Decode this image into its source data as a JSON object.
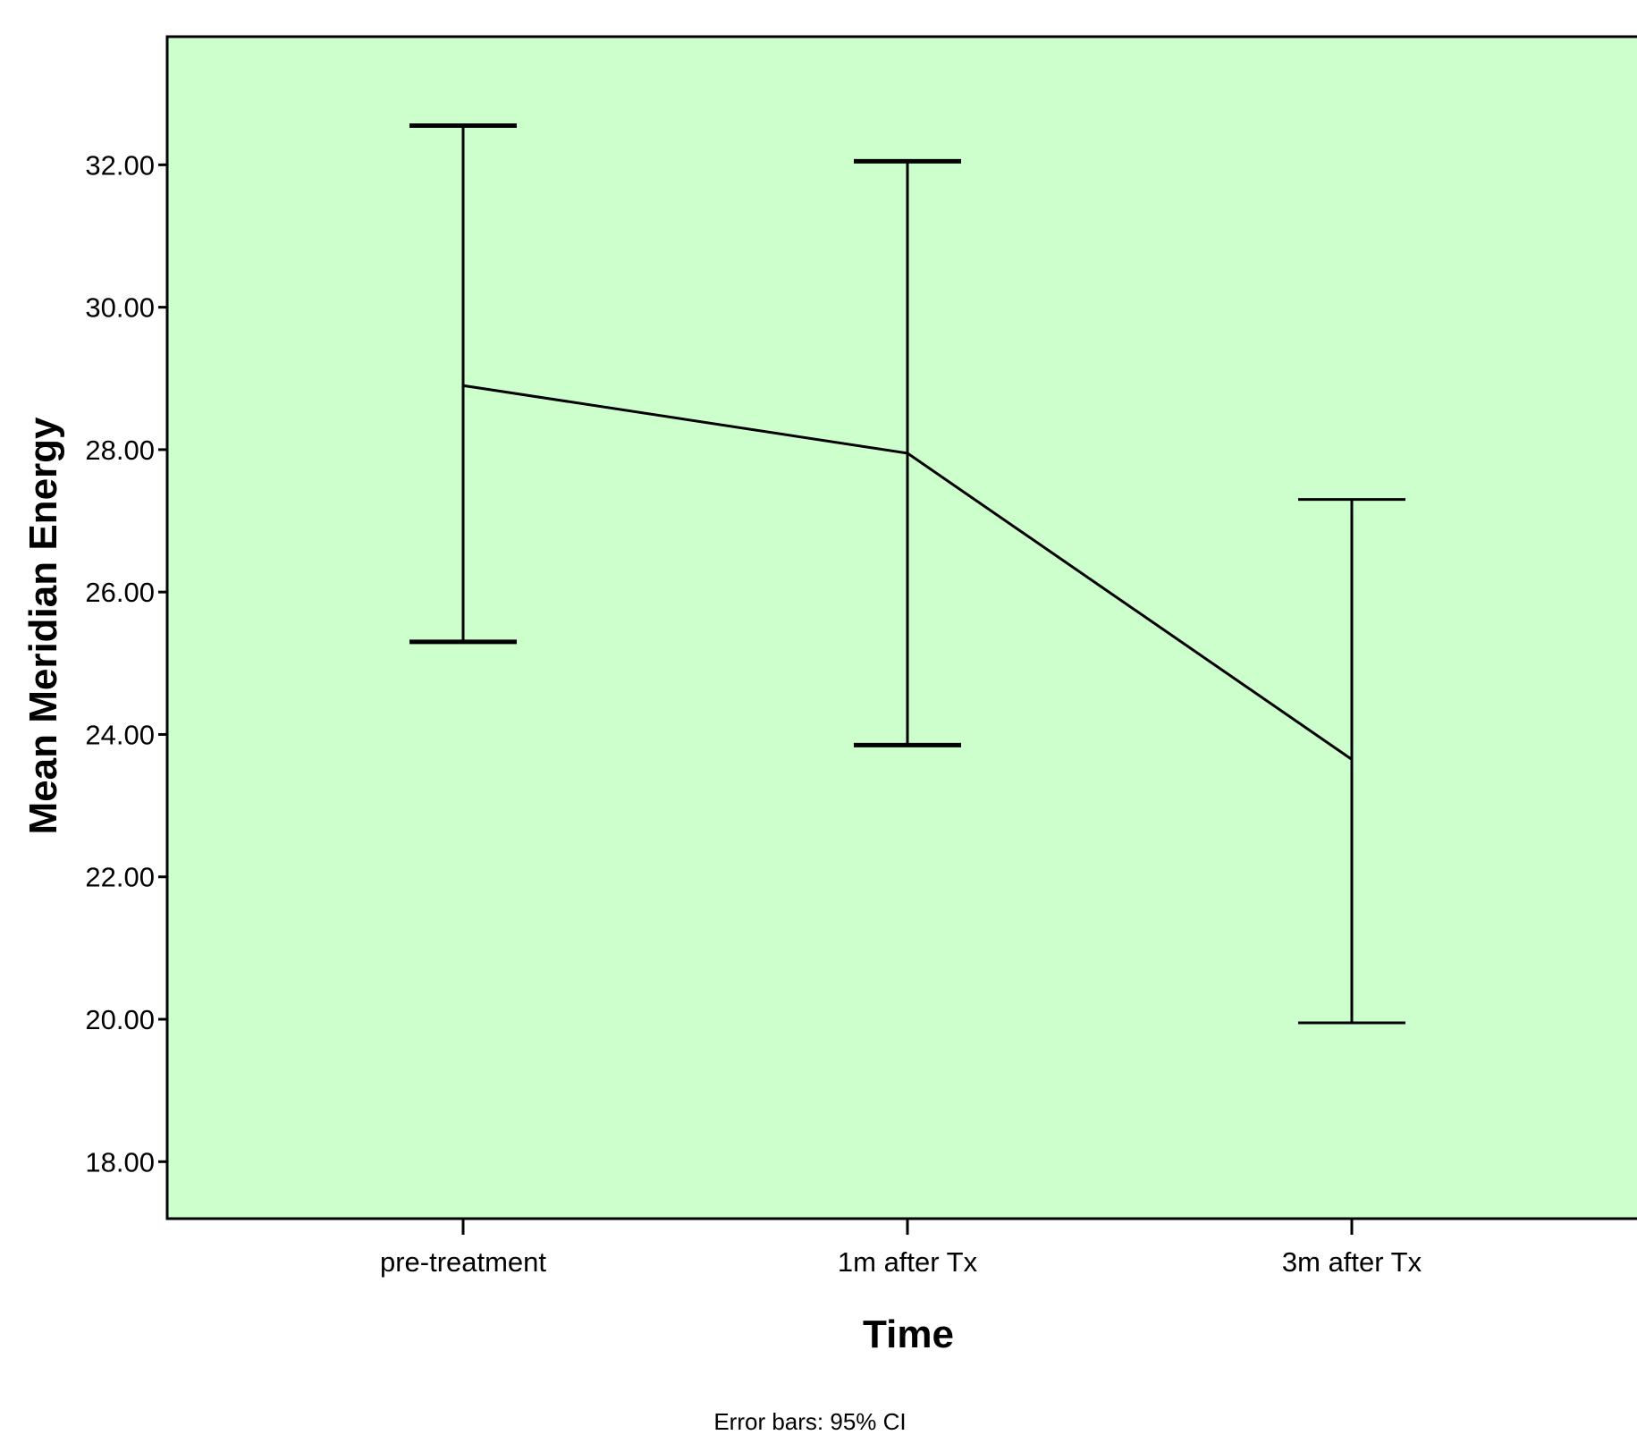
{
  "chart_data": {
    "type": "line",
    "categories": [
      "pre-treatment",
      "1m after Tx",
      "3m after Tx"
    ],
    "series": [
      {
        "values": [
          28.9,
          27.95,
          23.65
        ],
        "ci_lower": [
          25.3,
          23.85,
          19.95
        ],
        "ci_upper": [
          32.55,
          32.05,
          27.3
        ]
      }
    ],
    "xlabel": "Time",
    "ylabel": "Mean Meridian Energy",
    "ylim": [
      17.2,
      33.8
    ],
    "yticks": [
      "18.00",
      "20.00",
      "22.00",
      "24.00",
      "26.00",
      "28.00",
      "30.00",
      "32.00"
    ],
    "grid": false,
    "footnote": "Error bars: 95% CI",
    "colors": {
      "plot_background": "#ccffcc",
      "line": "#000000"
    }
  }
}
